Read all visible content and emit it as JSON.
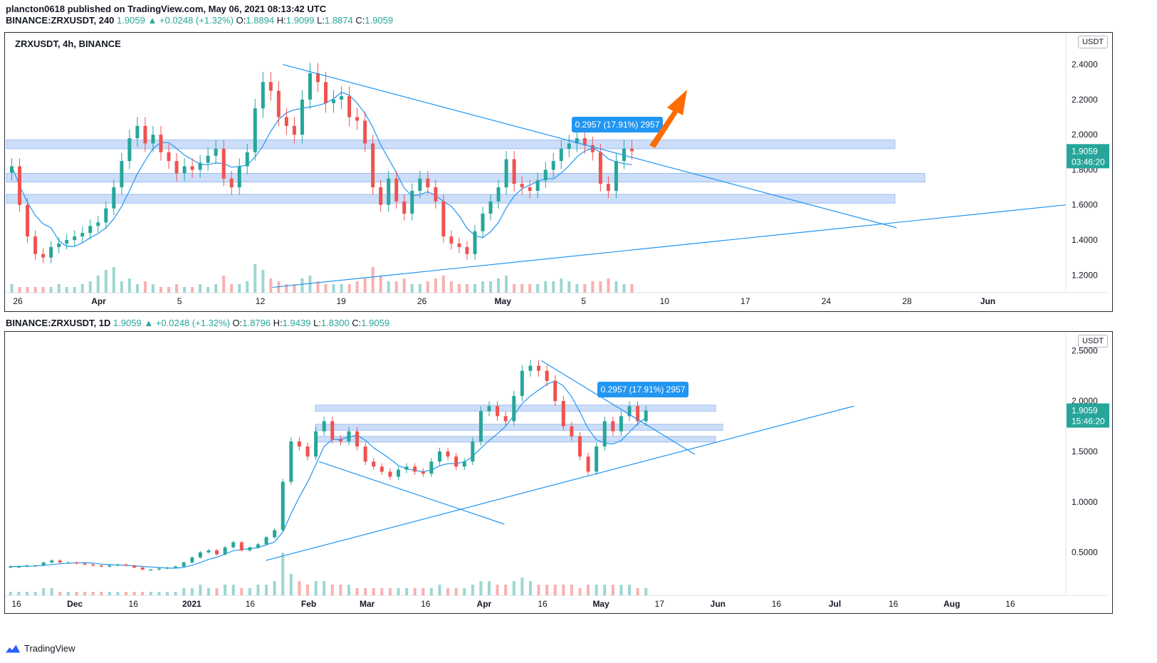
{
  "header": {
    "line1": "plancton0618 published on TradingView.com, May 06, 2021 08:13:42 UTC",
    "symbol_4h": "BINANCE:ZRXUSDT, 240",
    "last_4h": "1.9059",
    "chg_4h": "▲ +0.0248 (+1.32%)",
    "o_4h": "1.8894",
    "h_4h": "1.9099",
    "l_4h": "1.8874",
    "c_4h": "1.9059",
    "symbol_1d": "BINANCE:ZRXUSDT, 1D",
    "last_1d": "1.9059",
    "chg_1d": "▲ +0.0248 (+1.32%)",
    "o_1d": "1.8796",
    "h_1d": "1.9439",
    "l_1d": "1.8300",
    "c_1d": "1.9059",
    "o_lbl": "O:",
    "h_lbl": "H:",
    "l_lbl": "L:",
    "c_lbl": "C:"
  },
  "footer": {
    "brand": "TradingView"
  },
  "colors": {
    "up": "#26a69a",
    "down": "#ef5350",
    "line": "#2196f3",
    "zone": "#bbd3f7",
    "orange": "#ff6d00"
  },
  "chart_data": [
    {
      "type": "candlestick",
      "title": "ZRXUSDT, 4h, BINANCE",
      "currency": "USDT",
      "y_ticks": [
        "2.4000",
        "2.2000",
        "2.0000",
        "1.8000",
        "1.6000",
        "1.4000",
        "1.2000"
      ],
      "ylim": [
        1.12,
        2.52
      ],
      "x_ticks": [
        "26",
        "Apr",
        "5",
        "12",
        "19",
        "26",
        "May",
        "5",
        "10",
        "17",
        "24",
        "28",
        "Jun"
      ],
      "last_price": "1.9059",
      "countdown": "03:46:20",
      "measure_label": "0.2957 (17.91%) 2957",
      "zones": [
        [
          1.92,
          1.97
        ],
        [
          1.73,
          1.78
        ],
        [
          1.61,
          1.66
        ]
      ],
      "trendlines": [
        {
          "from": [
            0.26,
            2.4
          ],
          "to": [
            0.84,
            1.47
          ],
          "name": "descending resistance"
        },
        {
          "from": [
            0.25,
            1.13
          ],
          "to": [
            1.0,
            1.6
          ],
          "name": "ascending support"
        }
      ],
      "series": [
        1.82,
        1.6,
        1.42,
        1.32,
        1.3,
        1.36,
        1.38,
        1.4,
        1.42,
        1.44,
        1.48,
        1.5,
        1.58,
        1.7,
        1.85,
        1.98,
        2.05,
        1.95,
        2.0,
        1.9,
        1.85,
        1.78,
        1.82,
        1.8,
        1.84,
        1.88,
        1.92,
        1.75,
        1.7,
        1.82,
        1.9,
        2.15,
        2.3,
        2.25,
        2.1,
        2.05,
        2.0,
        2.2,
        2.35,
        2.3,
        2.18,
        2.2,
        2.22,
        2.1,
        2.08,
        1.95,
        1.7,
        1.6,
        1.75,
        1.62,
        1.55,
        1.68,
        1.75,
        1.7,
        1.62,
        1.42,
        1.38,
        1.36,
        1.32,
        1.45,
        1.55,
        1.62,
        1.7,
        1.86,
        1.72,
        1.7,
        1.68,
        1.74,
        1.8,
        1.85,
        1.92,
        1.95,
        1.98,
        1.94,
        1.9,
        1.72,
        1.68,
        1.85,
        1.92,
        1.906
      ],
      "volumes": [
        3,
        2,
        2,
        2,
        2,
        2,
        3,
        2,
        2,
        3,
        4,
        6,
        8,
        9,
        4,
        5,
        3,
        4,
        3,
        2,
        2,
        3,
        2,
        2,
        3,
        2,
        3,
        6,
        3,
        3,
        4,
        10,
        8,
        5,
        4,
        3,
        3,
        5,
        6,
        4,
        3,
        3,
        3,
        3,
        4,
        5,
        9,
        6,
        4,
        4,
        5,
        3,
        3,
        4,
        5,
        6,
        4,
        3,
        3,
        3,
        4,
        4,
        5,
        6,
        3,
        3,
        3,
        3,
        4,
        4,
        5,
        4,
        3,
        3,
        4,
        4,
        5,
        4,
        3,
        3
      ],
      "annotation": "orange arrow pointing up-right"
    },
    {
      "type": "candlestick",
      "title": "BINANCE:ZRXUSDT, 1D",
      "currency": "USDT",
      "y_ticks": [
        "2.5000",
        "2.0000",
        "1.5000",
        "1.0000",
        "0.5000"
      ],
      "ylim": [
        0.18,
        2.58
      ],
      "x_ticks": [
        "16",
        "Dec",
        "16",
        "2021",
        "16",
        "Feb",
        "Mar",
        "16",
        "Apr",
        "16",
        "May",
        "17",
        "Jun",
        "16",
        "Jul",
        "16",
        "Aug",
        "16"
      ],
      "last_price": "1.9059",
      "countdown": "15:46:20",
      "measure_label": "0.2957 (17.91%) 2957",
      "zones": [
        [
          1.9,
          1.96
        ],
        [
          1.71,
          1.77
        ],
        [
          1.6,
          1.65
        ]
      ],
      "trendlines": [
        {
          "from": [
            0.245,
            0.42
          ],
          "to": [
            0.8,
            1.95
          ],
          "name": "ascending support"
        },
        {
          "from": [
            0.295,
            1.4
          ],
          "to": [
            0.47,
            0.78
          ],
          "name": "descending channel"
        },
        {
          "from": [
            0.505,
            2.4
          ],
          "to": [
            0.65,
            1.47
          ],
          "name": "descending resistance"
        }
      ],
      "series": [
        0.36,
        0.36,
        0.37,
        0.37,
        0.4,
        0.42,
        0.4,
        0.4,
        0.39,
        0.38,
        0.37,
        0.36,
        0.37,
        0.38,
        0.37,
        0.35,
        0.33,
        0.33,
        0.34,
        0.35,
        0.36,
        0.4,
        0.45,
        0.5,
        0.52,
        0.48,
        0.55,
        0.6,
        0.52,
        0.55,
        0.58,
        0.65,
        0.72,
        1.2,
        1.6,
        1.55,
        1.45,
        1.7,
        1.8,
        1.62,
        1.6,
        1.7,
        1.55,
        1.4,
        1.35,
        1.3,
        1.25,
        1.32,
        1.35,
        1.3,
        1.28,
        1.4,
        1.5,
        1.45,
        1.35,
        1.4,
        1.6,
        1.9,
        1.95,
        1.85,
        1.8,
        2.05,
        2.3,
        2.35,
        2.3,
        2.2,
        2.0,
        1.75,
        1.65,
        1.45,
        1.3,
        1.55,
        1.8,
        1.7,
        1.85,
        1.95,
        1.8,
        1.906
      ],
      "volumes": [
        1,
        1,
        1,
        1,
        2,
        2,
        1,
        1,
        1,
        1,
        1,
        1,
        1,
        1,
        1,
        1,
        1,
        1,
        1,
        1,
        1,
        2,
        2,
        3,
        2,
        2,
        3,
        3,
        2,
        2,
        3,
        3,
        4,
        12,
        6,
        4,
        3,
        4,
        4,
        3,
        3,
        3,
        2,
        2,
        2,
        2,
        2,
        2,
        2,
        2,
        2,
        2,
        3,
        2,
        2,
        2,
        3,
        4,
        4,
        3,
        3,
        4,
        5,
        4,
        3,
        3,
        3,
        3,
        3,
        2,
        3,
        3,
        3,
        3,
        3,
        3,
        2,
        2
      ]
    }
  ]
}
